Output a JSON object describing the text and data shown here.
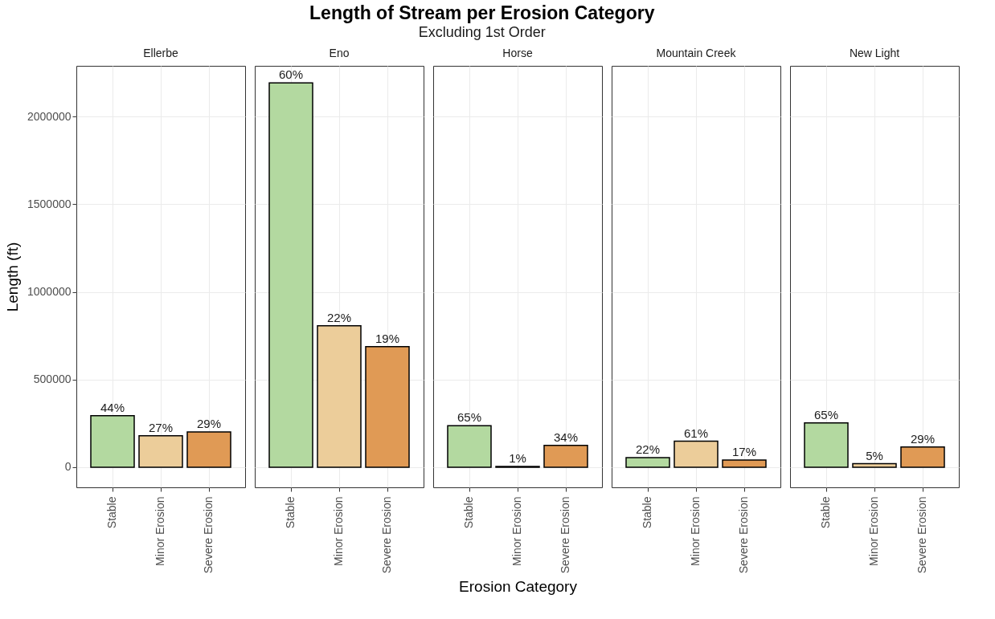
{
  "chart_data": [
    {
      "type": "bar",
      "title": "Ellerbe",
      "ylabel": "Length (ft)",
      "categories": [
        "Stable",
        "Minor Erosion",
        "Severe Erosion"
      ],
      "values": [
        294000,
        179000,
        201000
      ],
      "colors": [
        "#b3d9a0",
        "#eccd9a",
        "#e09a55"
      ],
      "ylim": [
        -115000,
        2290000
      ],
      "yticks": [
        0,
        500000,
        1000000,
        1500000,
        2000000
      ],
      "grid": true,
      "annotations": [
        "Length of Stream per Erosion Category",
        "Excluding 1st Order",
        {
          "text": "44%",
          "x": "Stable",
          "y": 294000
        },
        {
          "text": "27%",
          "x": "Minor Erosion",
          "y": 179000
        },
        {
          "text": "29%",
          "x": "Severe Erosion",
          "y": 201000
        }
      ]
    },
    {
      "type": "bar",
      "title": "Eno",
      "categories": [
        "Stable",
        "Minor Erosion",
        "Severe Erosion"
      ],
      "values": [
        2193000,
        807000,
        688000
      ],
      "colors": [
        "#b3d9a0",
        "#eccd9a",
        "#e09a55"
      ],
      "ylim": [
        -115000,
        2290000
      ],
      "yticks": [
        0,
        500000,
        1000000,
        1500000,
        2000000
      ],
      "grid": true,
      "tick_labels": "x",
      "annotations": [
        {
          "text": "60%",
          "x": "Stable",
          "y": 2193000
        },
        {
          "text": "22%",
          "x": "Minor Erosion",
          "y": 807000
        },
        {
          "text": "19%",
          "x": "Severe Erosion",
          "y": 688000
        }
      ]
    },
    {
      "type": "bar",
      "title": "Horse",
      "xlabel": "Erosion Category",
      "categories": [
        "Stable",
        "Minor Erosion",
        "Severe Erosion"
      ],
      "values": [
        237000,
        4000,
        124000
      ],
      "colors": [
        "#b3d9a0",
        "#eccd9a",
        "#e09a55"
      ],
      "ylim": [
        -115000,
        2290000
      ],
      "yticks": [
        0,
        500000,
        1000000,
        1500000,
        2000000
      ],
      "grid": true,
      "tick_labels": "x",
      "annotations": [
        {
          "text": "65%",
          "x": "Stable",
          "y": 237000
        },
        {
          "text": "1%",
          "x": "Minor Erosion",
          "y": 4000
        },
        {
          "text": "34%",
          "x": "Severe Erosion",
          "y": 124000
        }
      ]
    },
    {
      "type": "bar",
      "title": "Mountain Creek",
      "categories": [
        "Stable",
        "Minor Erosion",
        "Severe Erosion"
      ],
      "values": [
        54000,
        148000,
        41000
      ],
      "colors": [
        "#b3d9a0",
        "#eccd9a",
        "#e09a55"
      ],
      "ylim": [
        -115000,
        2290000
      ],
      "yticks": [
        0,
        500000,
        1000000,
        1500000,
        2000000
      ],
      "grid": true,
      "tick_labels": "x",
      "annotations": [
        {
          "text": "22%",
          "x": "Stable",
          "y": 54000
        },
        {
          "text": "61%",
          "x": "Minor Erosion",
          "y": 148000
        },
        {
          "text": "17%",
          "x": "Severe Erosion",
          "y": 41000
        }
      ]
    },
    {
      "type": "bar",
      "title": "New Light",
      "categories": [
        "Stable",
        "Minor Erosion",
        "Severe Erosion"
      ],
      "values": [
        253000,
        20000,
        115000
      ],
      "colors": [
        "#b3d9a0",
        "#eccd9a",
        "#e09a55"
      ],
      "ylim": [
        -115000,
        2290000
      ],
      "yticks": [
        0,
        500000,
        1000000,
        1500000,
        2000000
      ],
      "grid": true,
      "tick_labels": "x",
      "annotations": [
        {
          "text": "65%",
          "x": "Stable",
          "y": 253000
        },
        {
          "text": "5%",
          "x": "Minor Erosion",
          "y": 20000
        },
        {
          "text": "29%",
          "x": "Severe Erosion",
          "y": 115000
        }
      ]
    }
  ]
}
